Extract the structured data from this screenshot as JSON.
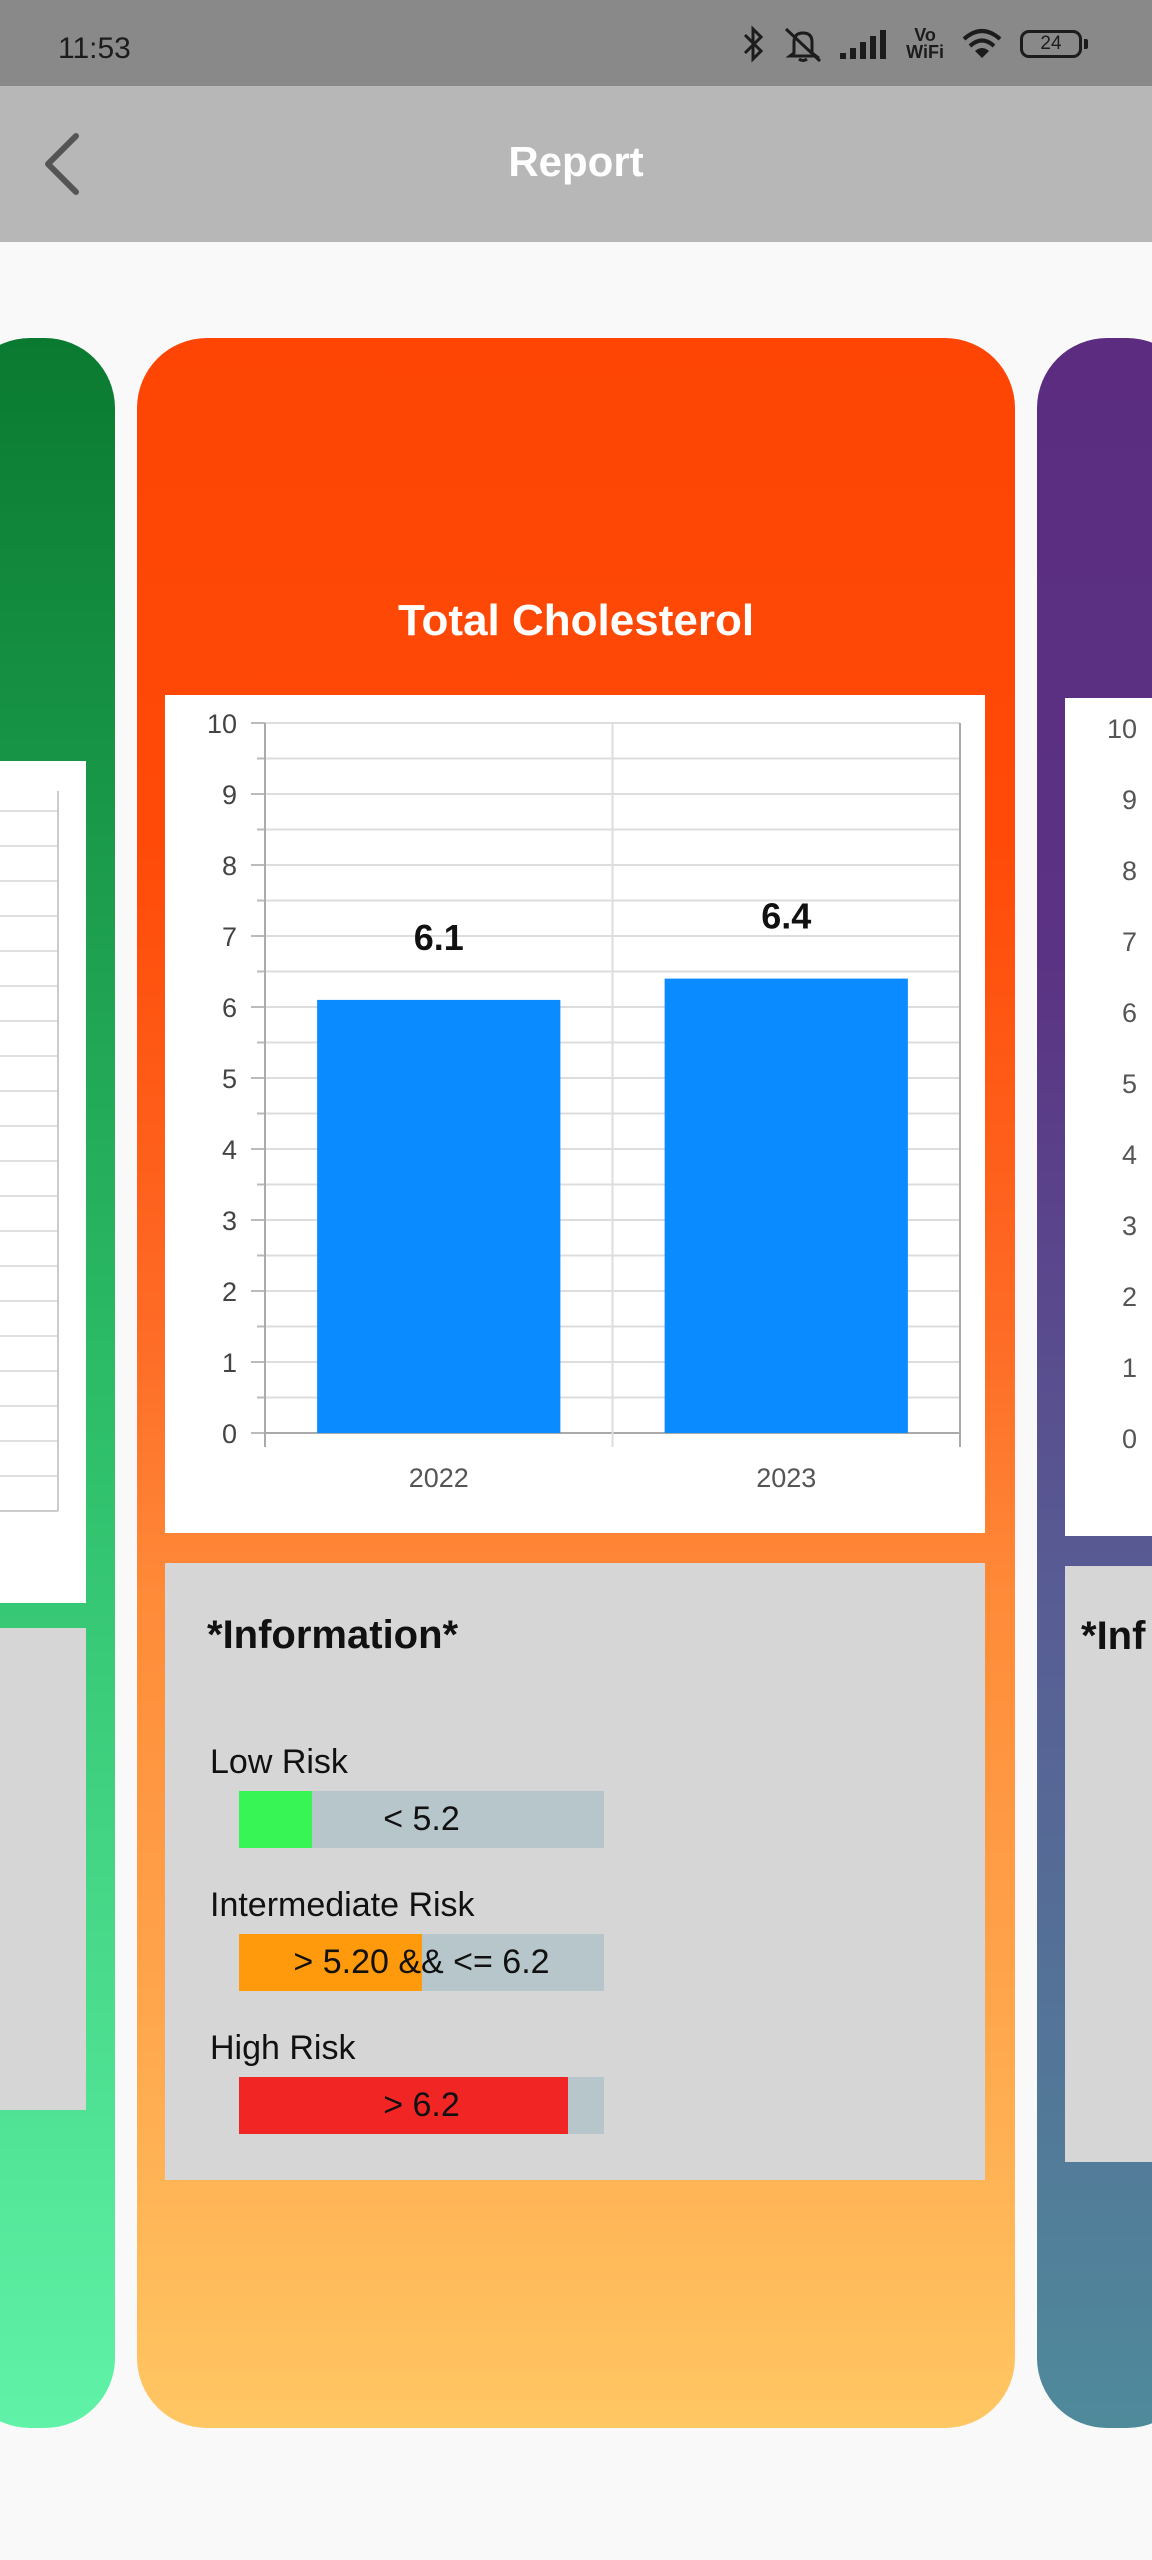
{
  "status": {
    "time": "11:53",
    "battery": "24",
    "vowifi_line1": "Vo",
    "vowifi_line2": "WiFi",
    "icons": [
      "bluetooth-icon",
      "mute-icon",
      "signal-icon",
      "vowifi-icon",
      "wifi-icon",
      "battery-icon"
    ]
  },
  "header": {
    "title": "Report",
    "back_icon": "chevron-left-icon"
  },
  "card": {
    "title": "Total Cholesterol",
    "background_colors": [
      "#fe4503",
      "#ffc763"
    ]
  },
  "chart_data": {
    "type": "bar",
    "categories": [
      "2022",
      "2023"
    ],
    "values": [
      6.1,
      6.4
    ],
    "data_labels": [
      "6.1",
      "6.4"
    ],
    "ylim": [
      0,
      10
    ],
    "yticks": [
      0,
      1,
      2,
      3,
      4,
      5,
      6,
      7,
      8,
      9,
      10
    ],
    "ytick_labels": [
      "0",
      "1",
      "2",
      "3",
      "4",
      "5",
      "6",
      "7",
      "8",
      "9",
      "10"
    ],
    "bar_color": "#0a8bff",
    "grid": true
  },
  "info": {
    "title": "*Information*",
    "items": [
      {
        "label": "Low Risk",
        "range": "< 5.2",
        "fill": 0.2,
        "color": "#38f556"
      },
      {
        "label": "Intermediate Risk",
        "range": "> 5.20 && <= 6.2",
        "fill": 0.5,
        "color": "#ff9a0d"
      },
      {
        "label": "High Risk",
        "range": "> 6.2",
        "fill": 0.9,
        "color": "#f22525"
      }
    ]
  },
  "right_card": {
    "ytick_labels": [
      "10",
      "9",
      "8",
      "7",
      "6",
      "5",
      "4",
      "3",
      "2",
      "1",
      "0"
    ],
    "info_title": "*Inf"
  }
}
